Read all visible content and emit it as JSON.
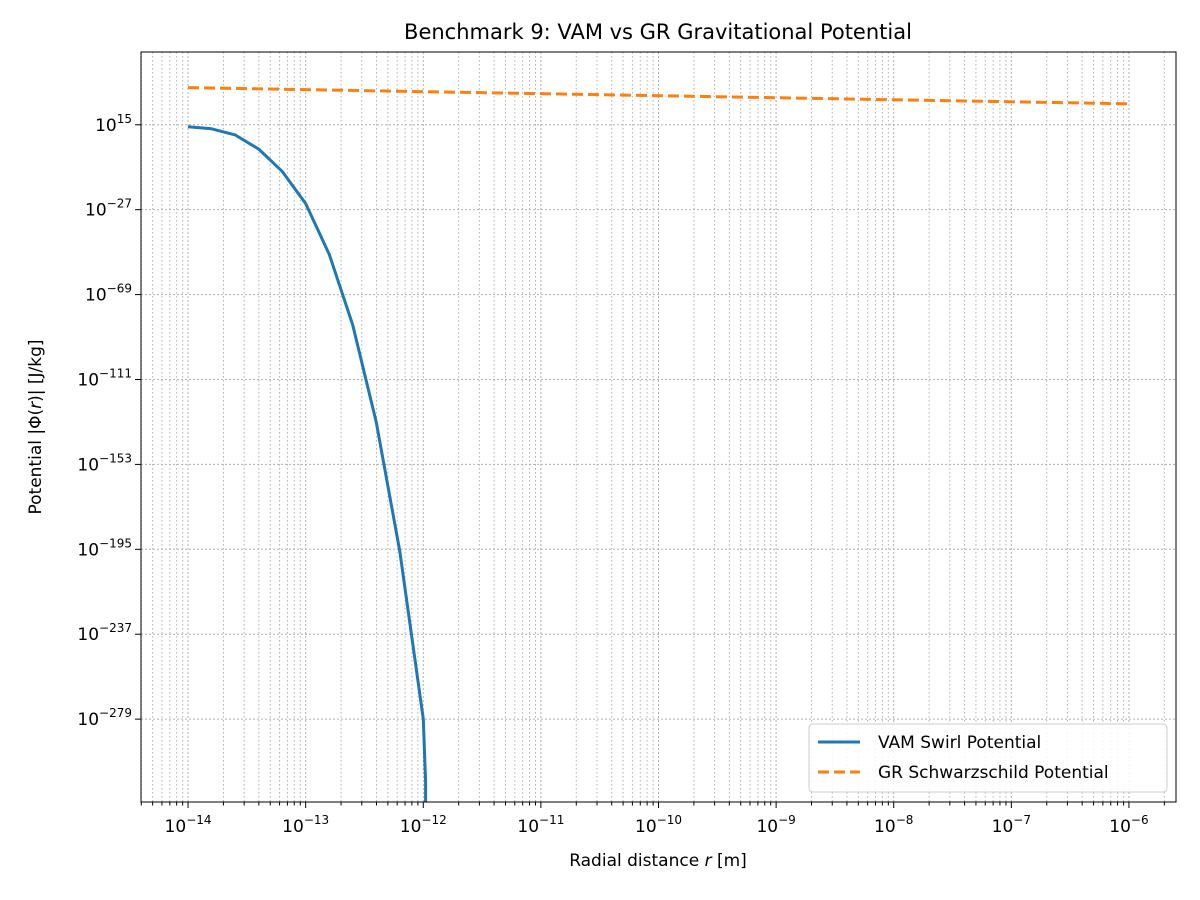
{
  "chart_data": {
    "type": "line",
    "title": "Benchmark 9: VAM vs GR Gravitational Potential",
    "xlabel": {
      "prefix": "Radial distance ",
      "var": "r",
      "suffix": " [m]"
    },
    "ylabel": {
      "prefix": "Potential |Φ(",
      "var": "r",
      "suffix": ")| [J/kg]"
    },
    "x_scale": "log",
    "y_scale": "log",
    "xlim_exp": [
      -14.4,
      -5.6
    ],
    "ylim_exp": [
      -320,
      51
    ],
    "x_ticks": [
      {
        "base": "10",
        "exp": "−14",
        "value_exp": -14
      },
      {
        "base": "10",
        "exp": "−13",
        "value_exp": -13
      },
      {
        "base": "10",
        "exp": "−12",
        "value_exp": -12
      },
      {
        "base": "10",
        "exp": "−11",
        "value_exp": -11
      },
      {
        "base": "10",
        "exp": "−10",
        "value_exp": -10
      },
      {
        "base": "10",
        "exp": "−9",
        "value_exp": -9
      },
      {
        "base": "10",
        "exp": "−8",
        "value_exp": -8
      },
      {
        "base": "10",
        "exp": "−7",
        "value_exp": -7
      },
      {
        "base": "10",
        "exp": "−6",
        "value_exp": -6
      }
    ],
    "y_ticks": [
      {
        "base": "10",
        "exp": "15",
        "value_exp": 15
      },
      {
        "base": "10",
        "exp": "−27",
        "value_exp": -27
      },
      {
        "base": "10",
        "exp": "−69",
        "value_exp": -69
      },
      {
        "base": "10",
        "exp": "−111",
        "value_exp": -111
      },
      {
        "base": "10",
        "exp": "−153",
        "value_exp": -153
      },
      {
        "base": "10",
        "exp": "−195",
        "value_exp": -195
      },
      {
        "base": "10",
        "exp": "−237",
        "value_exp": -237
      },
      {
        "base": "10",
        "exp": "−279",
        "value_exp": -279
      }
    ],
    "grid": true,
    "legend_position": "lower-right",
    "series": [
      {
        "name": "VAM Swirl Potential",
        "color": "#1f77b4",
        "style": "solid",
        "x_exp": [
          -14,
          -13.8,
          -13.6,
          -13.4,
          -13.2,
          -13,
          -12.8,
          -12.6,
          -12.4,
          -12.2,
          -12,
          -11.98,
          -11.98
        ],
        "y_exp": [
          14,
          13,
          10,
          3,
          -8,
          -24,
          -49,
          -84,
          -132,
          -196,
          -279,
          -310,
          -320
        ]
      },
      {
        "name": "GR Schwarzschild Potential",
        "color": "#ff7f0e",
        "style": "dashed",
        "x_exp": [
          -14,
          -6
        ],
        "y_exp": [
          33.4,
          25.4
        ]
      }
    ]
  }
}
